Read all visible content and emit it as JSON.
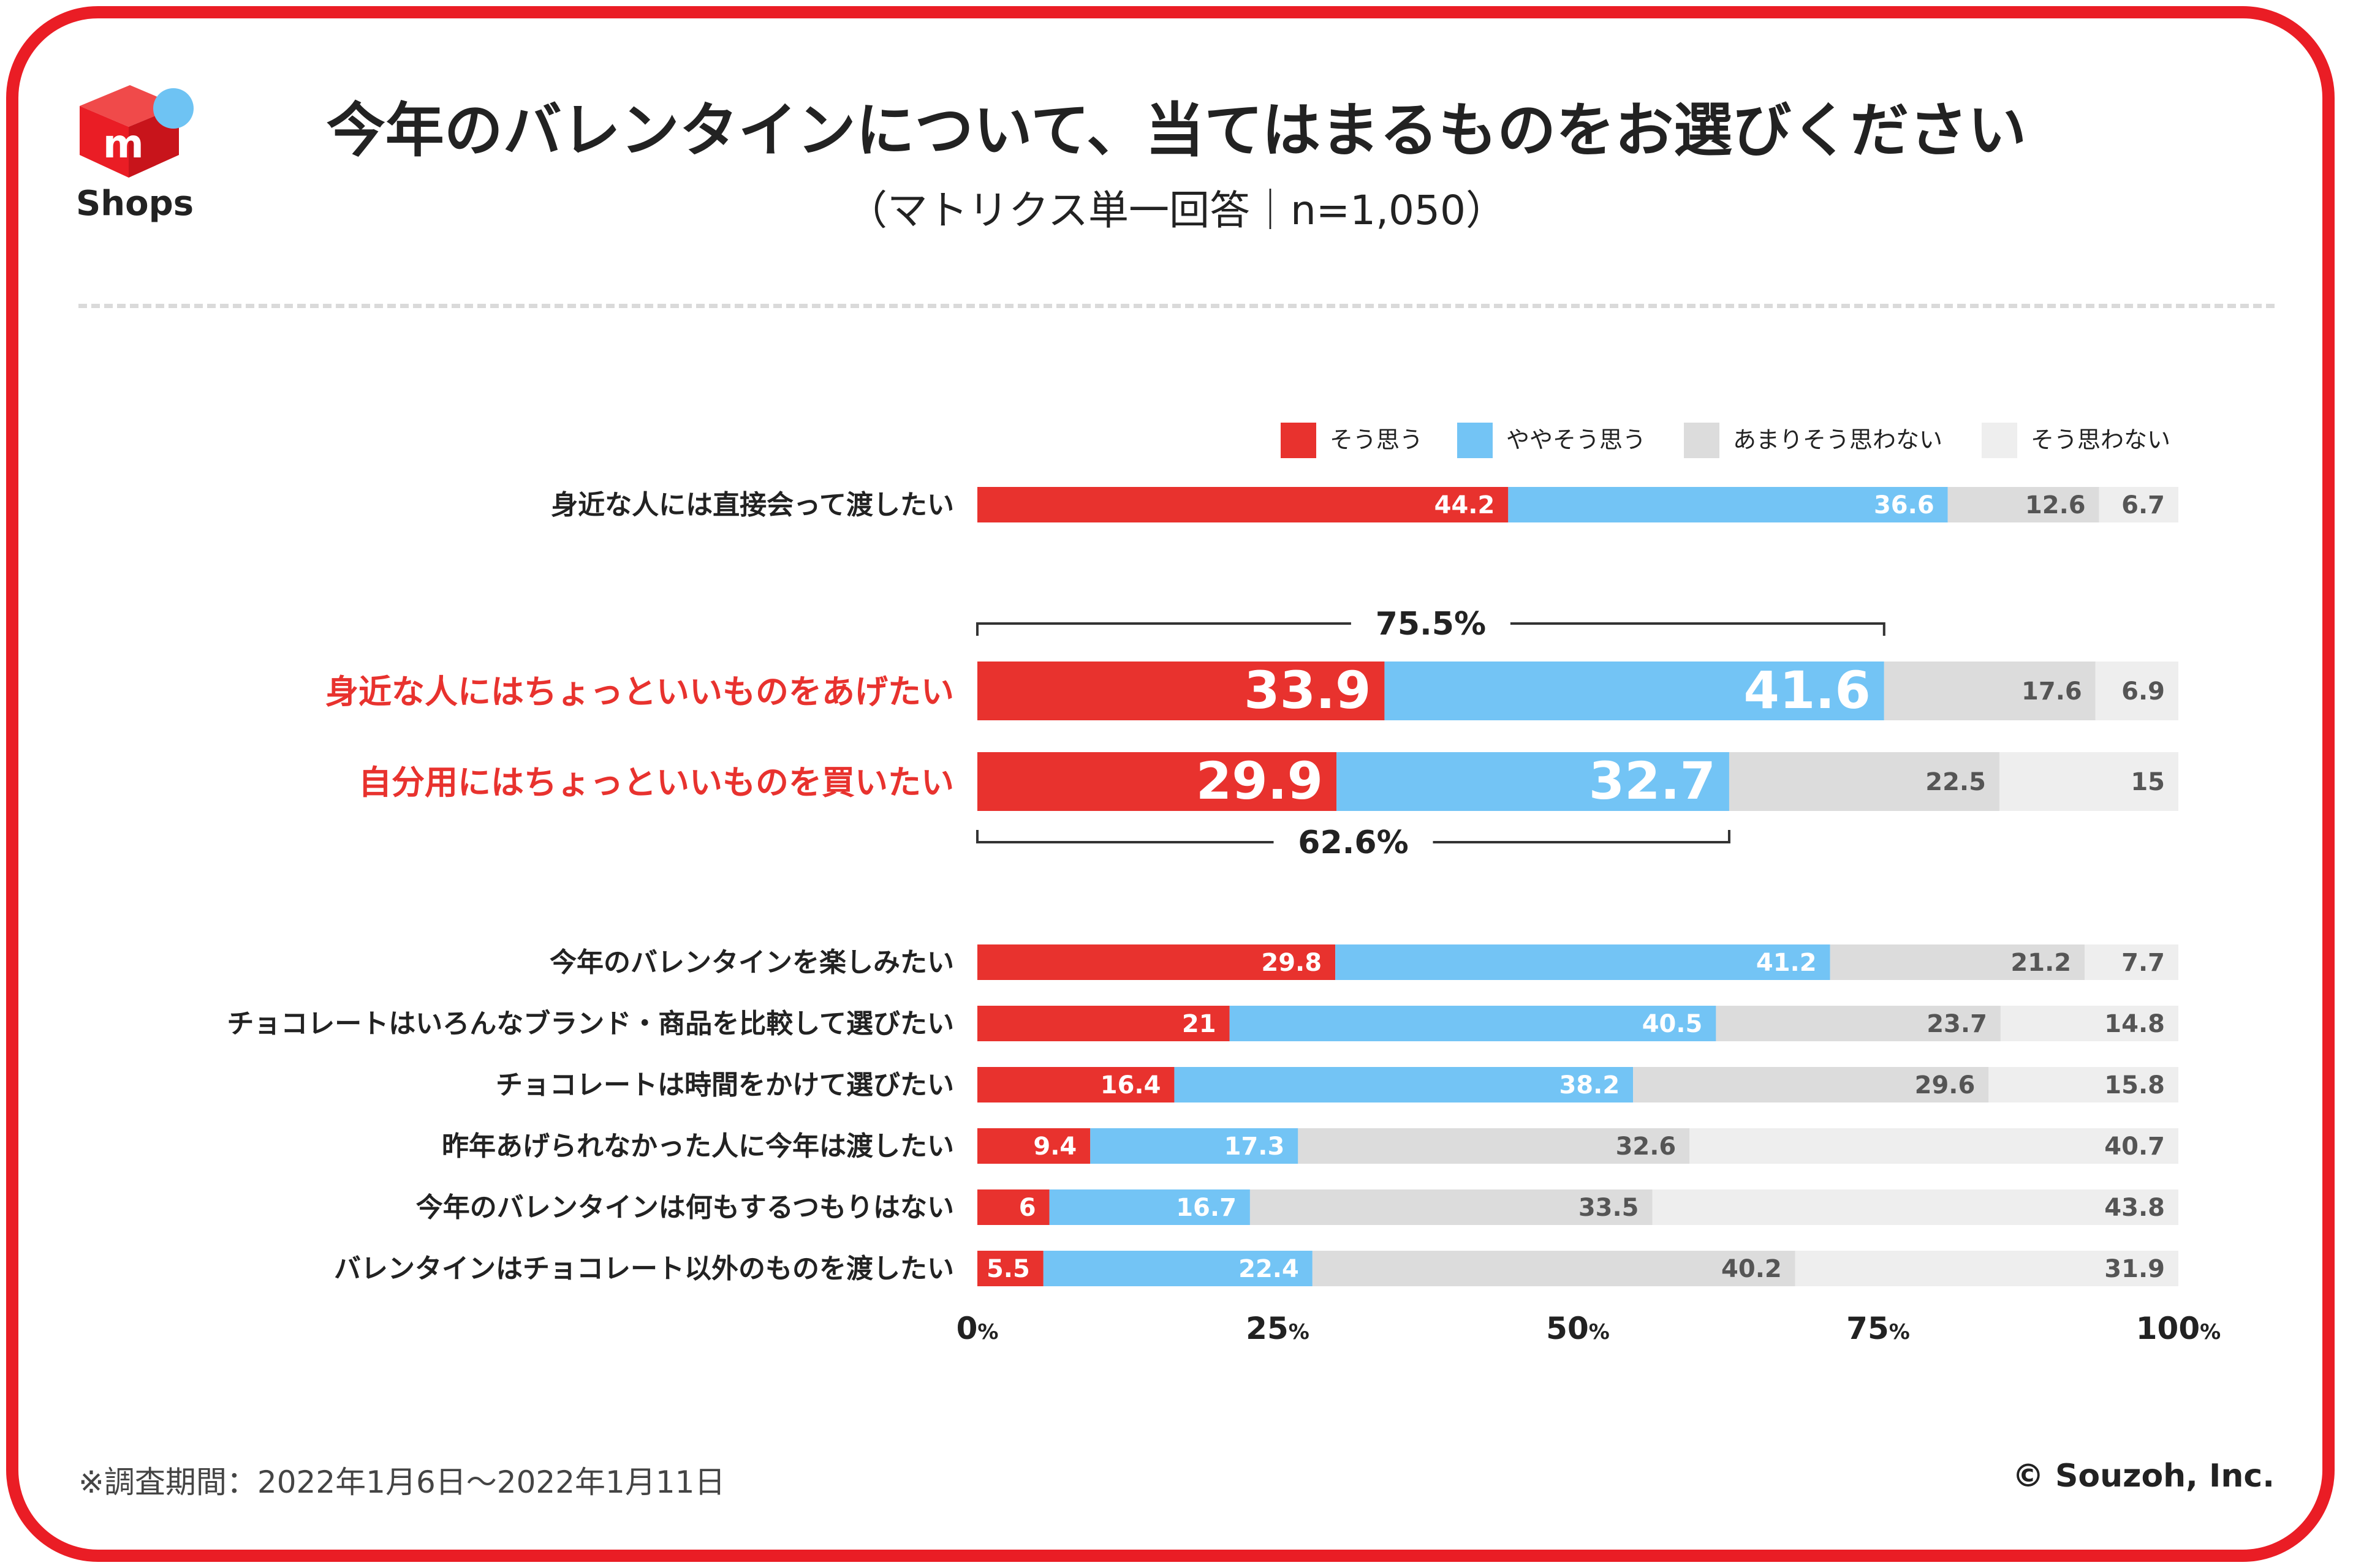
{
  "header": {
    "logo_text": "Shops",
    "title": "今年のバレンタインについて、当てはまるものをお選びください",
    "subtitle": "（マトリクス単一回答｜n=1,050）"
  },
  "footer": {
    "note": "※調査期間：2022年1月6日～2022年1月11日",
    "copyright": "© Souzoh, Inc."
  },
  "colors": {
    "brand_red": "#ea1d25",
    "bar_red": "#e8322e",
    "bar_blue": "#73c4f5",
    "bar_gray": "#dcdcdc",
    "bar_light": "#eeeeee",
    "highlight_text": "#e8322e"
  },
  "chart_data": {
    "type": "bar",
    "orientation": "horizontal",
    "stacked": true,
    "xlim": [
      0,
      100
    ],
    "x_ticks": [
      {
        "value": 0,
        "label": "0",
        "unit": "%"
      },
      {
        "value": 25,
        "label": "25",
        "unit": "%"
      },
      {
        "value": 50,
        "label": "50",
        "unit": "%"
      },
      {
        "value": 75,
        "label": "75",
        "unit": "%"
      },
      {
        "value": 100,
        "label": "100",
        "unit": "%"
      }
    ],
    "legend": [
      "そう思う",
      "ややそう思う",
      "あまりそう思わない",
      "そう思わない"
    ],
    "legend_position": "top-right",
    "rows": [
      {
        "label": "身近な人には直接会って渡したい",
        "values": [
          44.2,
          36.6,
          12.6,
          6.7
        ],
        "highlight": false
      },
      {
        "label": "身近な人にはちょっといいものをあげたい",
        "values": [
          33.9,
          41.6,
          17.6,
          6.9
        ],
        "highlight": true
      },
      {
        "label": "自分用にはちょっといいものを買いたい",
        "values": [
          29.9,
          32.7,
          22.5,
          15
        ],
        "highlight": true
      },
      {
        "label": "今年のバレンタインを楽しみたい",
        "values": [
          29.8,
          41.2,
          21.2,
          7.7
        ],
        "highlight": false
      },
      {
        "label": "チョコレートはいろんなブランド・商品を比較して選びたい",
        "values": [
          21,
          40.5,
          23.7,
          14.8
        ],
        "highlight": false
      },
      {
        "label": "チョコレートは時間をかけて選びたい",
        "values": [
          16.4,
          38.2,
          29.6,
          15.8
        ],
        "highlight": false
      },
      {
        "label": "昨年あげられなかった人に今年は渡したい",
        "values": [
          9.4,
          17.3,
          32.6,
          40.7
        ],
        "highlight": false
      },
      {
        "label": "今年のバレンタインは何もするつもりはない",
        "values": [
          6,
          16.7,
          33.5,
          43.8
        ],
        "highlight": false
      },
      {
        "label": "バレンタインはチョコレート以外のものを渡したい",
        "values": [
          5.5,
          22.4,
          40.2,
          31.9
        ],
        "highlight": false
      }
    ],
    "value_labels": [
      [
        "44.2",
        "36.6",
        "12.6",
        "6.7"
      ],
      [
        "33.9",
        "41.6",
        "17.6",
        "6.9"
      ],
      [
        "29.9",
        "32.7",
        "22.5",
        "15"
      ],
      [
        "29.8",
        "41.2",
        "21.2",
        "7.7"
      ],
      [
        "21",
        "40.5",
        "23.7",
        "14.8"
      ],
      [
        "16.4",
        "38.2",
        "29.6",
        "15.8"
      ],
      [
        "9.4",
        "17.3",
        "32.6",
        "40.7"
      ],
      [
        "6",
        "16.7",
        "33.5",
        "43.8"
      ],
      [
        "5.5",
        "22.4",
        "40.2",
        "31.9"
      ]
    ],
    "annotations": [
      {
        "row": 1,
        "label": "75.5%",
        "from": 0,
        "to": 75.5,
        "side": "above"
      },
      {
        "row": 2,
        "label": "62.6%",
        "from": 0,
        "to": 62.6,
        "side": "below"
      }
    ]
  }
}
